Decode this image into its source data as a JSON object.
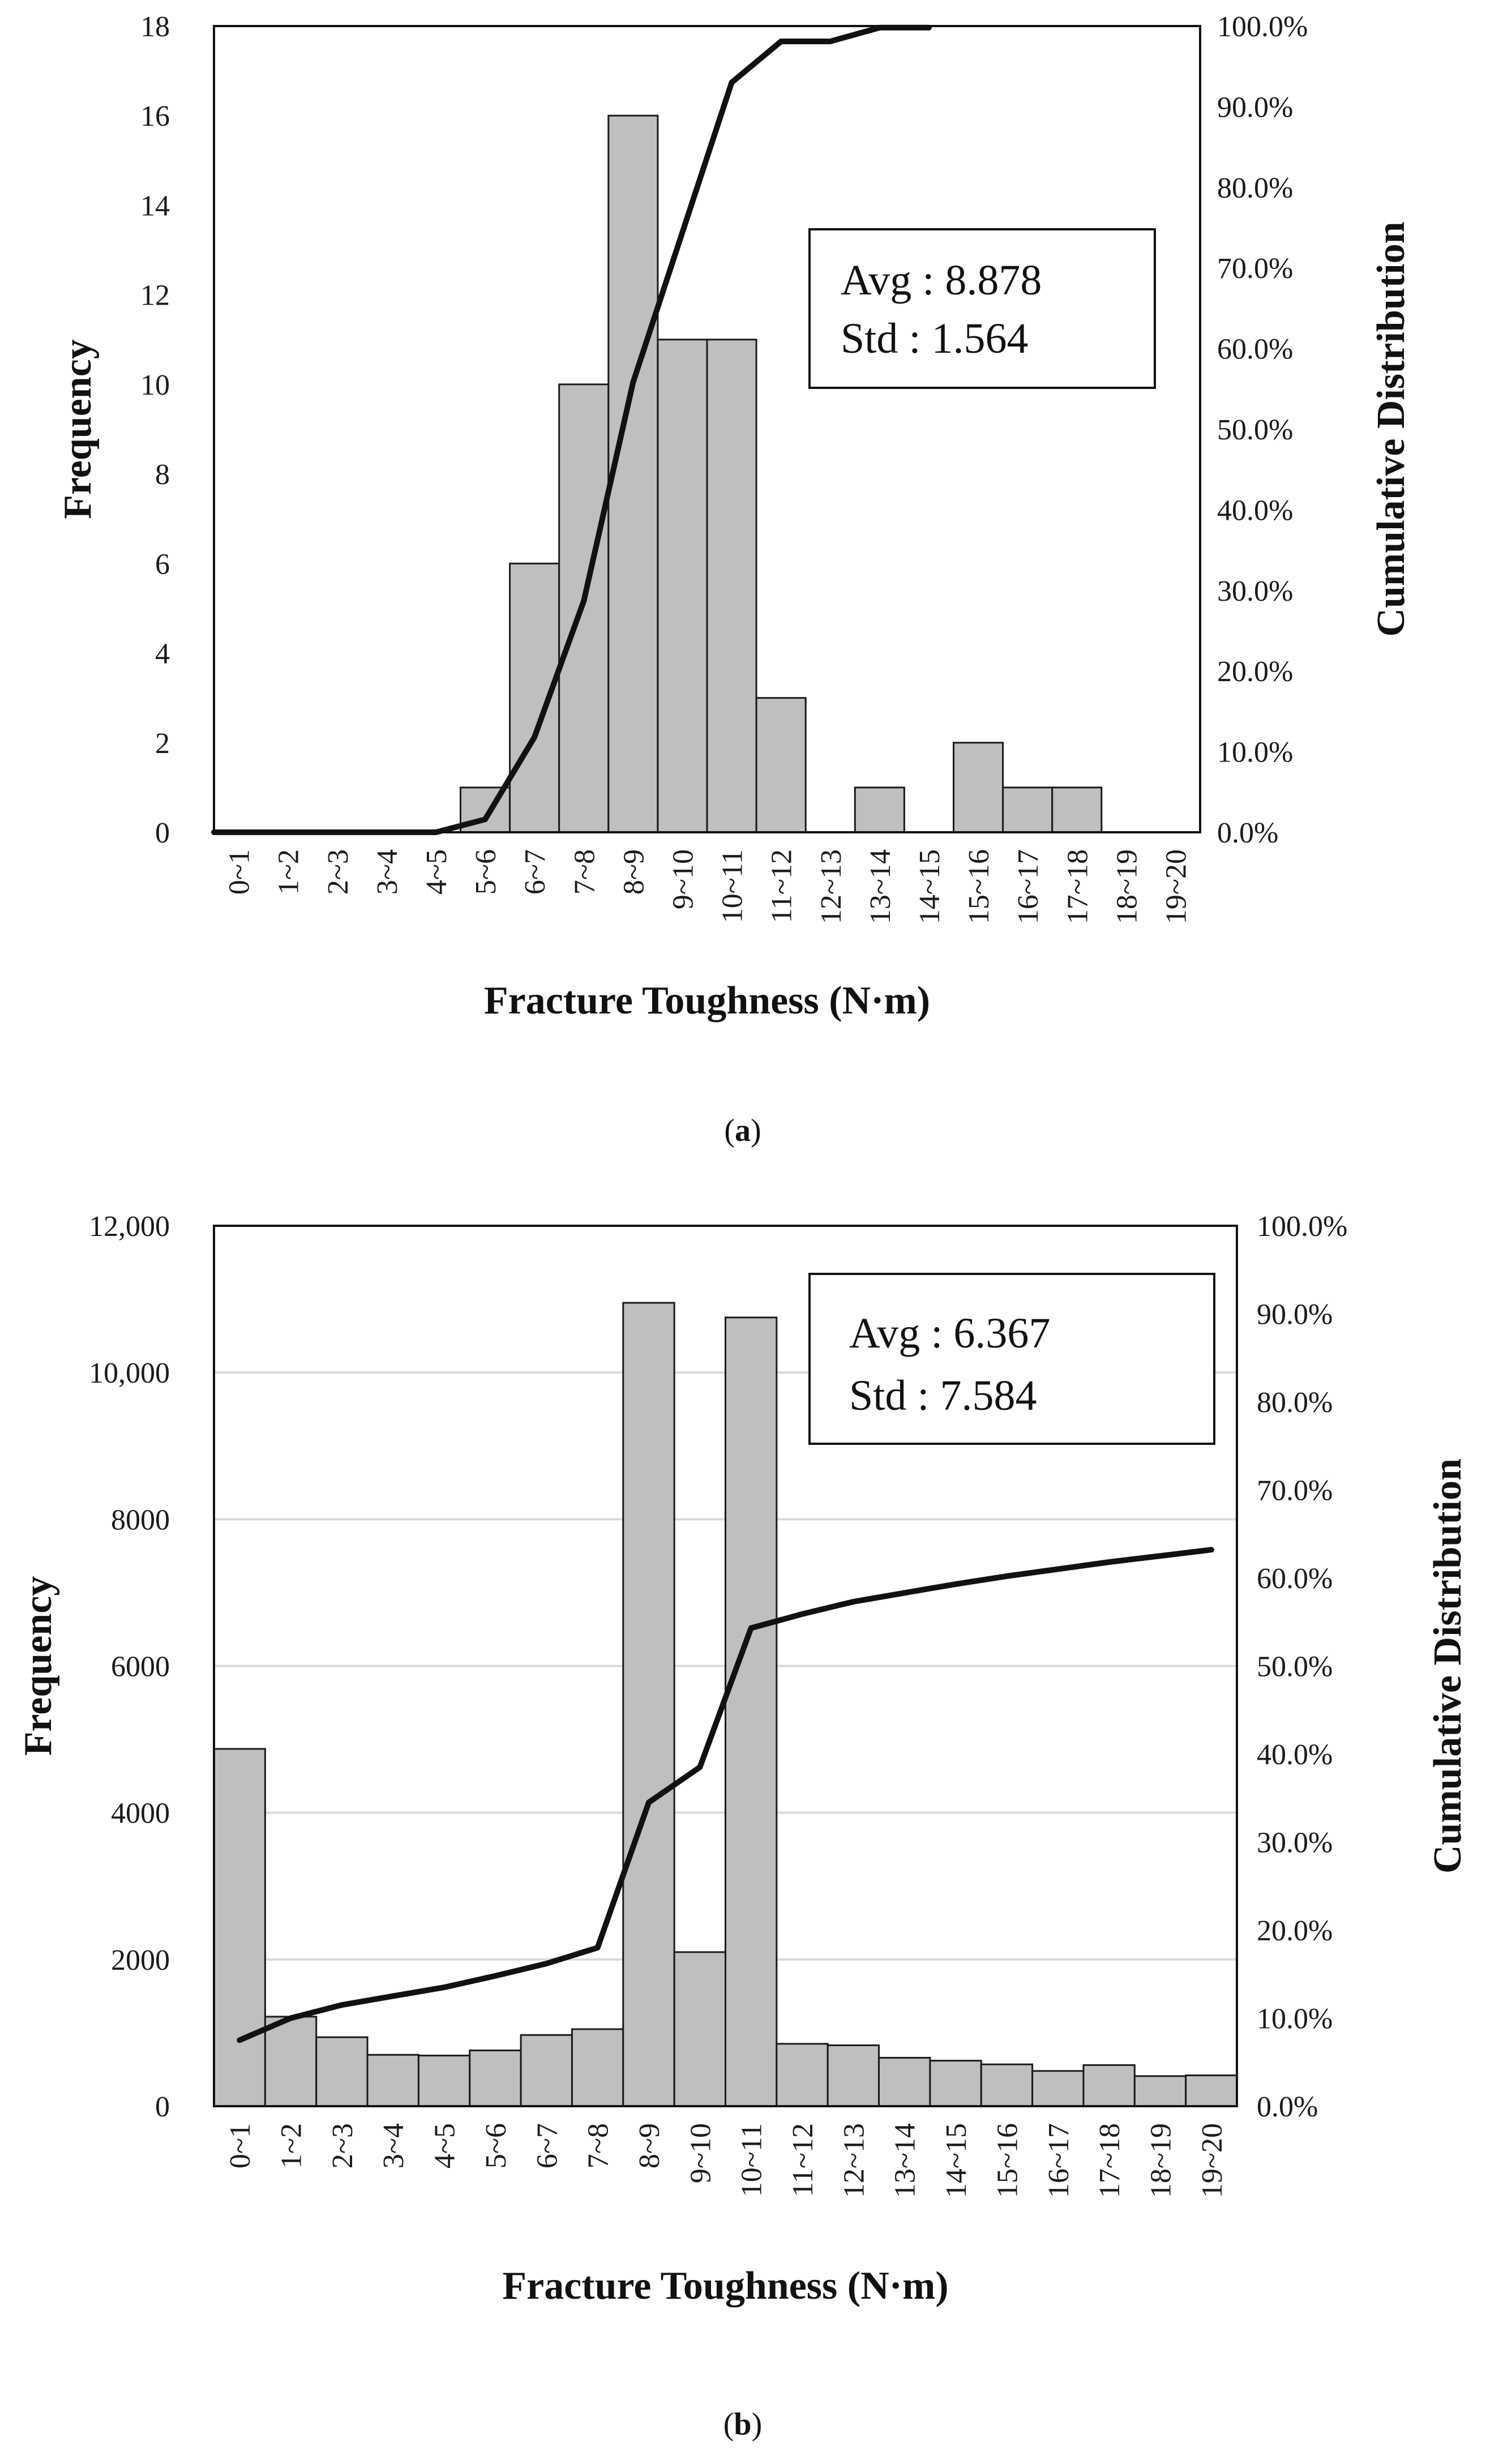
{
  "colors": {
    "bar": "#bfbfbf",
    "bar_edge": "#1a1a1a",
    "line": "#111111",
    "grid": "#d9d9d9",
    "frame": "#111111"
  },
  "chart_data": [
    {
      "type": "bar",
      "panel_label": "a",
      "categories": [
        "0~1",
        "1~2",
        "2~3",
        "3~4",
        "4~5",
        "5~6",
        "6~7",
        "7~8",
        "8~9",
        "9~10",
        "10~11",
        "11~12",
        "12~13",
        "13~14",
        "14~15",
        "15~16",
        "16~17",
        "17~18",
        "18~19",
        "19~20"
      ],
      "series": [
        {
          "name": "Frequency",
          "axis": "left",
          "kind": "bar",
          "values": [
            0,
            0,
            0,
            0,
            0,
            1,
            6,
            10,
            16,
            11,
            11,
            3,
            0,
            1,
            0,
            2,
            1,
            1,
            0,
            0
          ]
        },
        {
          "name": "Cumulative Distribution",
          "axis": "right",
          "kind": "line",
          "values": [
            0,
            0,
            0,
            0,
            0,
            1.6,
            11.8,
            28.7,
            55.8,
            74.4,
            93.0,
            98.1,
            98.1,
            99.8,
            99.8,
            null,
            null,
            null,
            null,
            null
          ]
        }
      ],
      "xlabel": "Fracture Toughness (N·m)",
      "ylabel": "Frequency",
      "y2label": "Cumulative Distribution",
      "ylim": [
        0,
        18
      ],
      "y_ticks": [
        "0",
        "2",
        "4",
        "6",
        "8",
        "10",
        "12",
        "14",
        "16",
        "18"
      ],
      "y2lim": [
        0,
        100
      ],
      "y2_ticks": [
        "0.0%",
        "10.0%",
        "20.0%",
        "30.0%",
        "40.0%",
        "50.0%",
        "60.0%",
        "70.0%",
        "80.0%",
        "90.0%",
        "100.0%"
      ],
      "grid": false,
      "stats": {
        "avg": "Avg : 8.878",
        "std": "Std : 1.564"
      }
    },
    {
      "type": "bar",
      "panel_label": "b",
      "categories": [
        "0~1",
        "1~2",
        "2~3",
        "3~4",
        "4~5",
        "5~6",
        "6~7",
        "7~8",
        "8~9",
        "9~10",
        "10~11",
        "11~12",
        "12~13",
        "13~14",
        "14~15",
        "15~16",
        "16~17",
        "17~18",
        "18~19",
        "19~20"
      ],
      "series": [
        {
          "name": "Frequency",
          "axis": "left",
          "kind": "bar",
          "values": [
            4870,
            1220,
            940,
            700,
            690,
            760,
            970,
            1050,
            10950,
            2100,
            10750,
            850,
            830,
            660,
            620,
            570,
            480,
            560,
            410,
            420
          ]
        },
        {
          "name": "Cumulative Distribution",
          "axis": "right",
          "kind": "line",
          "values": [
            7.5,
            10.0,
            11.5,
            12.5,
            13.5,
            14.8,
            16.2,
            18.0,
            34.5,
            38.5,
            54.3,
            55.9,
            57.3,
            58.3,
            59.3,
            60.2,
            61.0,
            61.8,
            62.5,
            63.2
          ]
        }
      ],
      "xlabel": "Fracture Toughness (N·m)",
      "ylabel": "Frequency",
      "y2label": "Cumulative Distribution",
      "ylim": [
        0,
        12000
      ],
      "y_ticks": [
        "0",
        "2000",
        "4000",
        "6000",
        "8000",
        "10,000",
        "12,000"
      ],
      "y2lim": [
        0,
        100
      ],
      "y2_ticks": [
        "0.0%",
        "10.0%",
        "20.0%",
        "30.0%",
        "40.0%",
        "50.0%",
        "60.0%",
        "70.0%",
        "80.0%",
        "90.0%",
        "100.0%"
      ],
      "grid": true,
      "stats": {
        "avg": "Avg : 6.367",
        "std": "Std : 7.584"
      }
    }
  ]
}
